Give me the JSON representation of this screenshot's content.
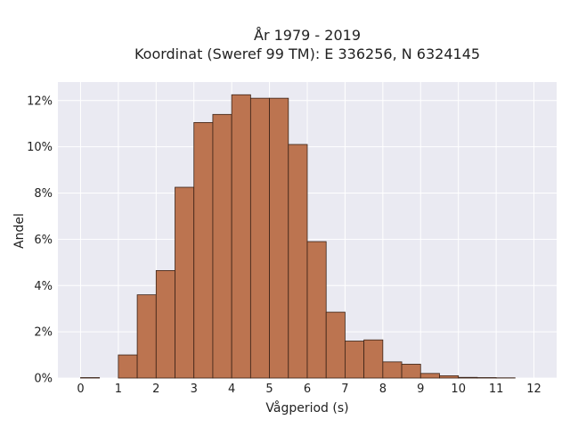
{
  "chart_data": {
    "type": "bar",
    "title": "År 1979 - 2019",
    "subtitle": "Koordinat (Sweref 99 TM): E 336256, N 6324145",
    "xlabel": "Vågperiod (s)",
    "ylabel": "Andel",
    "xlim": [
      -0.6,
      12.6
    ],
    "ylim": [
      0,
      12.8
    ],
    "xticks": [
      0,
      1,
      2,
      3,
      4,
      5,
      6,
      7,
      8,
      9,
      10,
      11,
      12
    ],
    "xtick_labels": [
      "0",
      "1",
      "2",
      "3",
      "4",
      "5",
      "6",
      "7",
      "8",
      "9",
      "10",
      "11",
      "12"
    ],
    "yticks": [
      0,
      2,
      4,
      6,
      8,
      10,
      12
    ],
    "ytick_labels": [
      "0%",
      "2%",
      "4%",
      "6%",
      "8%",
      "10%",
      "12%"
    ],
    "bin_width": 0.5,
    "bins": [
      {
        "x0": 0.0,
        "x1": 0.5,
        "value": 0.02
      },
      {
        "x0": 0.5,
        "x1": 1.0,
        "value": 0.0
      },
      {
        "x0": 1.0,
        "x1": 1.5,
        "value": 1.0
      },
      {
        "x0": 1.5,
        "x1": 2.0,
        "value": 3.6
      },
      {
        "x0": 2.0,
        "x1": 2.5,
        "value": 4.65
      },
      {
        "x0": 2.5,
        "x1": 3.0,
        "value": 8.25
      },
      {
        "x0": 3.0,
        "x1": 3.5,
        "value": 11.05
      },
      {
        "x0": 3.5,
        "x1": 4.0,
        "value": 11.4
      },
      {
        "x0": 4.0,
        "x1": 4.5,
        "value": 12.25
      },
      {
        "x0": 4.5,
        "x1": 5.0,
        "value": 12.1
      },
      {
        "x0": 5.0,
        "x1": 5.5,
        "value": 12.1
      },
      {
        "x0": 5.5,
        "x1": 6.0,
        "value": 10.1
      },
      {
        "x0": 6.0,
        "x1": 6.5,
        "value": 5.9
      },
      {
        "x0": 6.5,
        "x1": 7.0,
        "value": 2.85
      },
      {
        "x0": 7.0,
        "x1": 7.5,
        "value": 1.6
      },
      {
        "x0": 7.5,
        "x1": 8.0,
        "value": 1.65
      },
      {
        "x0": 8.0,
        "x1": 8.5,
        "value": 0.7
      },
      {
        "x0": 8.5,
        "x1": 9.0,
        "value": 0.6
      },
      {
        "x0": 9.0,
        "x1": 9.5,
        "value": 0.2
      },
      {
        "x0": 9.5,
        "x1": 10.0,
        "value": 0.1
      },
      {
        "x0": 10.0,
        "x1": 10.5,
        "value": 0.03
      },
      {
        "x0": 10.5,
        "x1": 11.0,
        "value": 0.02
      },
      {
        "x0": 11.0,
        "x1": 11.5,
        "value": 0.01
      }
    ],
    "grid": true,
    "colors": {
      "bar_fill": "#bc7450",
      "bar_edge": "#3a2216",
      "plot_background": "#eaeaf2",
      "grid": "#ffffff"
    }
  }
}
